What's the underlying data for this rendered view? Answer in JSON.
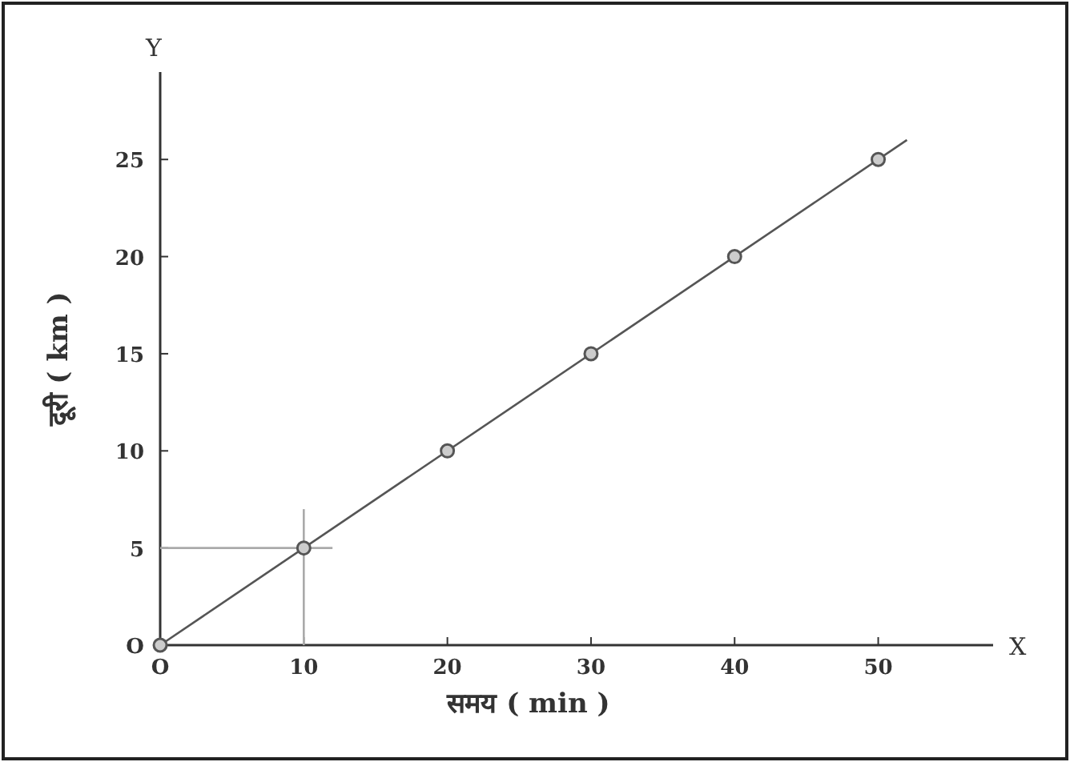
{
  "chart_data": {
    "type": "line",
    "xlabel": "समय ( min )",
    "ylabel": "दूरी ( km )",
    "annotations": [
      "X",
      "Y"
    ],
    "xlim": [
      0,
      58
    ],
    "ylim": [
      0,
      29.5
    ],
    "xticks": [
      {
        "value": 0,
        "label": "O"
      },
      10,
      20,
      30,
      40,
      50
    ],
    "yticks": [
      {
        "value": 0,
        "label": "O"
      },
      5,
      10,
      15,
      20,
      25
    ],
    "grid": false,
    "series": [
      {
        "color": "#555555",
        "x": [
          0,
          52
        ],
        "values": [
          0,
          26
        ],
        "marker": "none"
      },
      {
        "color": "#aaaaaa",
        "x": [
          10,
          10
        ],
        "values": [
          0,
          7
        ],
        "marker": "none"
      },
      {
        "color": "#aaaaaa",
        "x": [
          0,
          12
        ],
        "values": [
          5,
          5
        ],
        "marker": "none"
      },
      {
        "type": "scatter",
        "color": "#555555",
        "x": [
          0,
          10,
          20,
          30,
          40,
          50
        ],
        "values": [
          0,
          5,
          10,
          15,
          20,
          25
        ],
        "marker": "circle"
      }
    ]
  }
}
